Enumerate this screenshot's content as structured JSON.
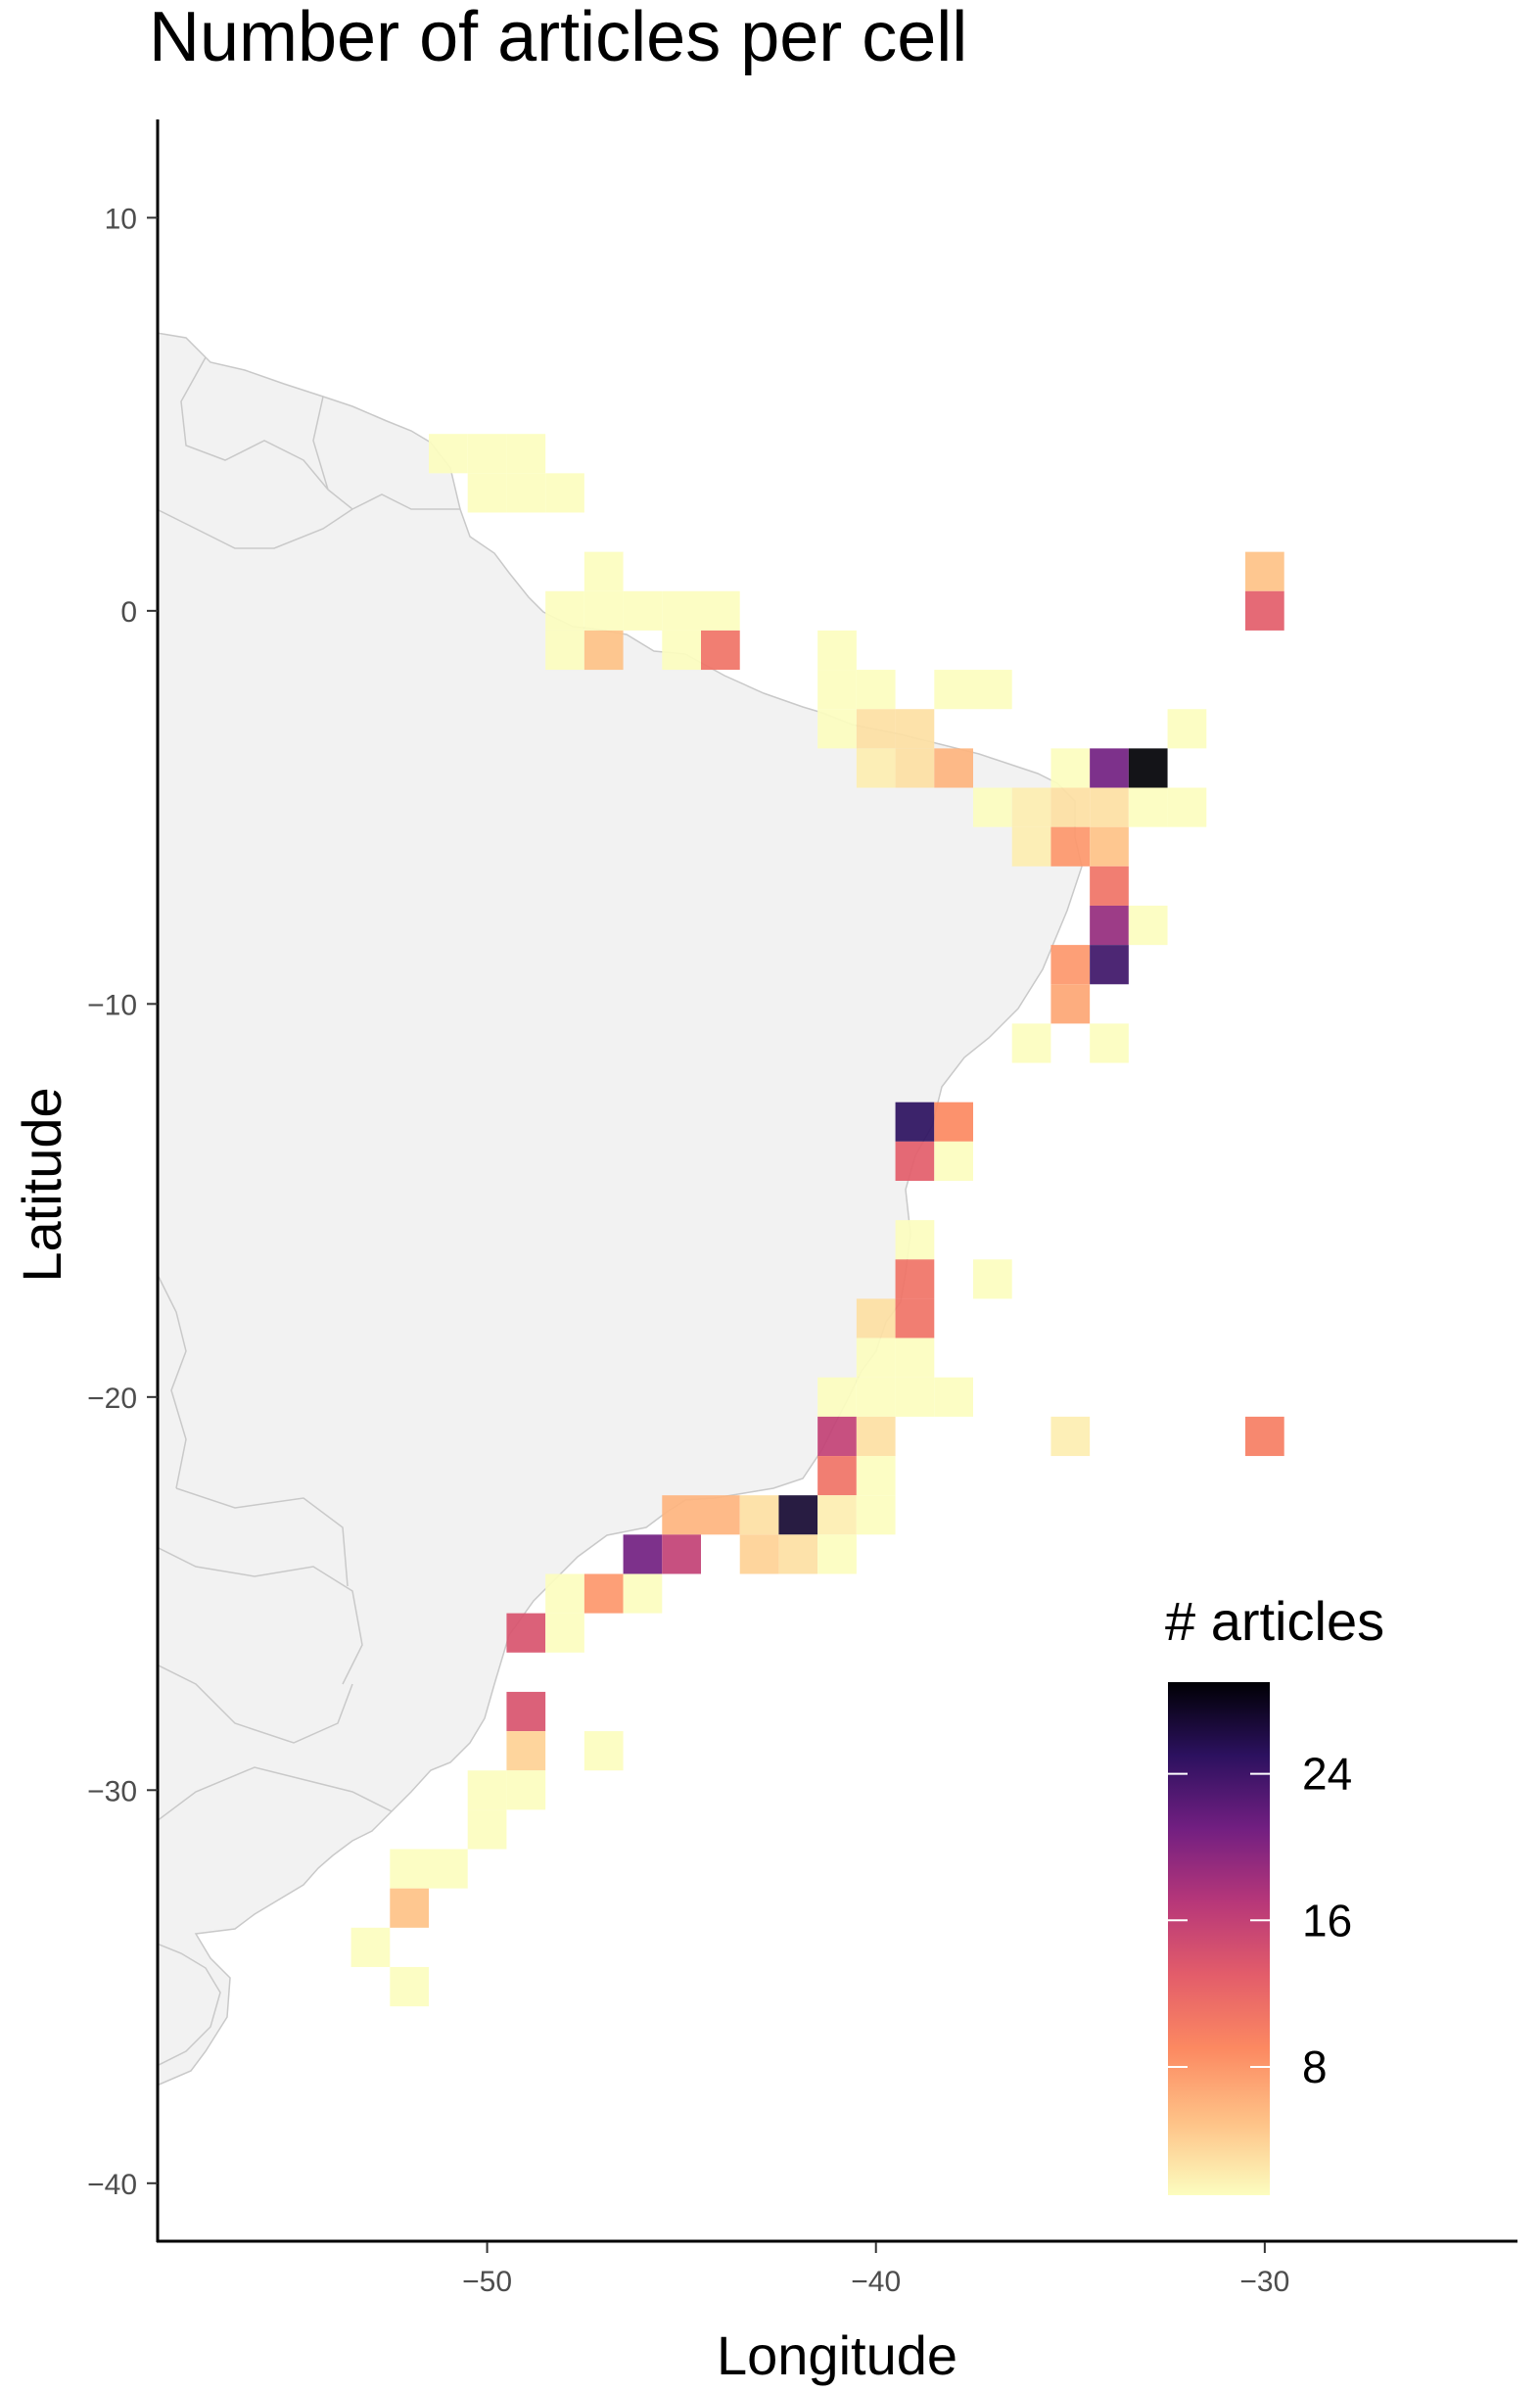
{
  "chart_data": {
    "type": "heatmap",
    "title": "Number of articles per cell",
    "xlabel": "Longitude",
    "ylabel": "Latitude",
    "xlim": [
      -58.5,
      -23.5
    ],
    "ylim": [
      -41.5,
      12.5
    ],
    "x_ticks": [
      -50,
      -40,
      -30
    ],
    "x_tick_labels": [
      "−50",
      "−40",
      "−30"
    ],
    "y_ticks": [
      10,
      0,
      -10,
      -20,
      -30,
      -40
    ],
    "y_tick_labels": [
      "10",
      "0",
      "−10",
      "−20",
      "−30",
      "−40"
    ],
    "cell_size_degrees": 1,
    "grid": false,
    "legend": {
      "title": "# articles",
      "position": "bottom-right",
      "min": 1,
      "max": 29,
      "ticks": [
        8,
        16,
        24
      ],
      "colors": [
        "#fcfdbf",
        "#fec287",
        "#fc8961",
        "#e35d6a",
        "#b73779",
        "#721f81",
        "#2c115f",
        "#000004"
      ]
    },
    "cells": [
      {
        "lon": -51,
        "lat": 4,
        "count": 1
      },
      {
        "lon": -50,
        "lat": 4,
        "count": 1
      },
      {
        "lon": -49,
        "lat": 4,
        "count": 1
      },
      {
        "lon": -50,
        "lat": 3,
        "count": 1
      },
      {
        "lon": -49,
        "lat": 3,
        "count": 1
      },
      {
        "lon": -48,
        "lat": 3,
        "count": 1
      },
      {
        "lon": -47,
        "lat": 1,
        "count": 1
      },
      {
        "lon": -48,
        "lat": 0,
        "count": 1
      },
      {
        "lon": -47,
        "lat": 0,
        "count": 1
      },
      {
        "lon": -46,
        "lat": 0,
        "count": 1
      },
      {
        "lon": -45,
        "lat": 0,
        "count": 1
      },
      {
        "lon": -44,
        "lat": 0,
        "count": 1
      },
      {
        "lon": -48,
        "lat": -1,
        "count": 1
      },
      {
        "lon": -47,
        "lat": -1,
        "count": 5
      },
      {
        "lon": -45,
        "lat": -1,
        "count": 1
      },
      {
        "lon": -44,
        "lat": -1,
        "count": 11
      },
      {
        "lon": -41,
        "lat": -1,
        "count": 1
      },
      {
        "lon": -41,
        "lat": -2,
        "count": 1
      },
      {
        "lon": -40,
        "lat": -2,
        "count": 1
      },
      {
        "lon": -38,
        "lat": -2,
        "count": 1
      },
      {
        "lon": -37,
        "lat": -2,
        "count": 1
      },
      {
        "lon": -41,
        "lat": -3,
        "count": 1
      },
      {
        "lon": -40,
        "lat": -3,
        "count": 3
      },
      {
        "lon": -39,
        "lat": -3,
        "count": 3
      },
      {
        "lon": -32,
        "lat": -3,
        "count": 1
      },
      {
        "lon": -40,
        "lat": -4,
        "count": 2
      },
      {
        "lon": -39,
        "lat": -4,
        "count": 3
      },
      {
        "lon": -38,
        "lat": -4,
        "count": 6
      },
      {
        "lon": -35,
        "lat": -4,
        "count": 1
      },
      {
        "lon": -34,
        "lat": -4,
        "count": 21
      },
      {
        "lon": -33,
        "lat": -4,
        "count": 29
      },
      {
        "lon": -37,
        "lat": -5,
        "count": 1
      },
      {
        "lon": -36,
        "lat": -5,
        "count": 2
      },
      {
        "lon": -35,
        "lat": -5,
        "count": 3
      },
      {
        "lon": -34,
        "lat": -5,
        "count": 3
      },
      {
        "lon": -33,
        "lat": -5,
        "count": 1
      },
      {
        "lon": -32,
        "lat": -5,
        "count": 1
      },
      {
        "lon": -36,
        "lat": -6,
        "count": 2
      },
      {
        "lon": -35,
        "lat": -6,
        "count": 8
      },
      {
        "lon": -34,
        "lat": -6,
        "count": 5
      },
      {
        "lon": -34,
        "lat": -7,
        "count": 11
      },
      {
        "lon": -34,
        "lat": -8,
        "count": 19
      },
      {
        "lon": -33,
        "lat": -8,
        "count": 1
      },
      {
        "lon": -35,
        "lat": -9,
        "count": 8
      },
      {
        "lon": -34,
        "lat": -9,
        "count": 24
      },
      {
        "lon": -35,
        "lat": -10,
        "count": 7
      },
      {
        "lon": -36,
        "lat": -11,
        "count": 1
      },
      {
        "lon": -34,
        "lat": -11,
        "count": 1
      },
      {
        "lon": -39,
        "lat": -13,
        "count": 25
      },
      {
        "lon": -38,
        "lat": -13,
        "count": 9
      },
      {
        "lon": -39,
        "lat": -14,
        "count": 13
      },
      {
        "lon": -38,
        "lat": -14,
        "count": 1
      },
      {
        "lon": -39,
        "lat": -16,
        "count": 1
      },
      {
        "lon": -39,
        "lat": -17,
        "count": 11
      },
      {
        "lon": -37,
        "lat": -17,
        "count": 1
      },
      {
        "lon": -40,
        "lat": -18,
        "count": 3
      },
      {
        "lon": -39,
        "lat": -18,
        "count": 11
      },
      {
        "lon": -40,
        "lat": -19,
        "count": 1
      },
      {
        "lon": -39,
        "lat": -19,
        "count": 1
      },
      {
        "lon": -41,
        "lat": -20,
        "count": 1
      },
      {
        "lon": -40,
        "lat": -20,
        "count": 1
      },
      {
        "lon": -39,
        "lat": -20,
        "count": 1
      },
      {
        "lon": -38,
        "lat": -20,
        "count": 1
      },
      {
        "lon": -41,
        "lat": -21,
        "count": 16
      },
      {
        "lon": -40,
        "lat": -21,
        "count": 3
      },
      {
        "lon": -35,
        "lat": -21,
        "count": 2
      },
      {
        "lon": -30,
        "lat": -21,
        "count": 10
      },
      {
        "lon": -41,
        "lat": -22,
        "count": 11
      },
      {
        "lon": -40,
        "lat": -22,
        "count": 1
      },
      {
        "lon": -45,
        "lat": -23,
        "count": 6
      },
      {
        "lon": -44,
        "lat": -23,
        "count": 6
      },
      {
        "lon": -43,
        "lat": -23,
        "count": 3
      },
      {
        "lon": -42,
        "lat": -23,
        "count": 27
      },
      {
        "lon": -41,
        "lat": -23,
        "count": 2
      },
      {
        "lon": -40,
        "lat": -23,
        "count": 1
      },
      {
        "lon": -46,
        "lat": -24,
        "count": 21
      },
      {
        "lon": -45,
        "lat": -24,
        "count": 16
      },
      {
        "lon": -43,
        "lat": -24,
        "count": 4
      },
      {
        "lon": -42,
        "lat": -24,
        "count": 3
      },
      {
        "lon": -41,
        "lat": -24,
        "count": 1
      },
      {
        "lon": -48,
        "lat": -25,
        "count": 1
      },
      {
        "lon": -47,
        "lat": -25,
        "count": 8
      },
      {
        "lon": -46,
        "lat": -25,
        "count": 1
      },
      {
        "lon": -49,
        "lat": -26,
        "count": 14
      },
      {
        "lon": -48,
        "lat": -26,
        "count": 1
      },
      {
        "lon": -49,
        "lat": -28,
        "count": 14
      },
      {
        "lon": -49,
        "lat": -29,
        "count": 4
      },
      {
        "lon": -47,
        "lat": -29,
        "count": 1
      },
      {
        "lon": -50,
        "lat": -30,
        "count": 1
      },
      {
        "lon": -49,
        "lat": -30,
        "count": 1
      },
      {
        "lon": -50,
        "lat": -31,
        "count": 1
      },
      {
        "lon": -52,
        "lat": -32,
        "count": 1
      },
      {
        "lon": -51,
        "lat": -32,
        "count": 1
      },
      {
        "lon": -52,
        "lat": -33,
        "count": 5
      },
      {
        "lon": -53,
        "lat": -34,
        "count": 1
      },
      {
        "lon": -52,
        "lat": -35,
        "count": 1
      },
      {
        "lon": -30,
        "lat": 1,
        "count": 5
      },
      {
        "lon": -30,
        "lat": 0,
        "count": 13
      }
    ]
  }
}
